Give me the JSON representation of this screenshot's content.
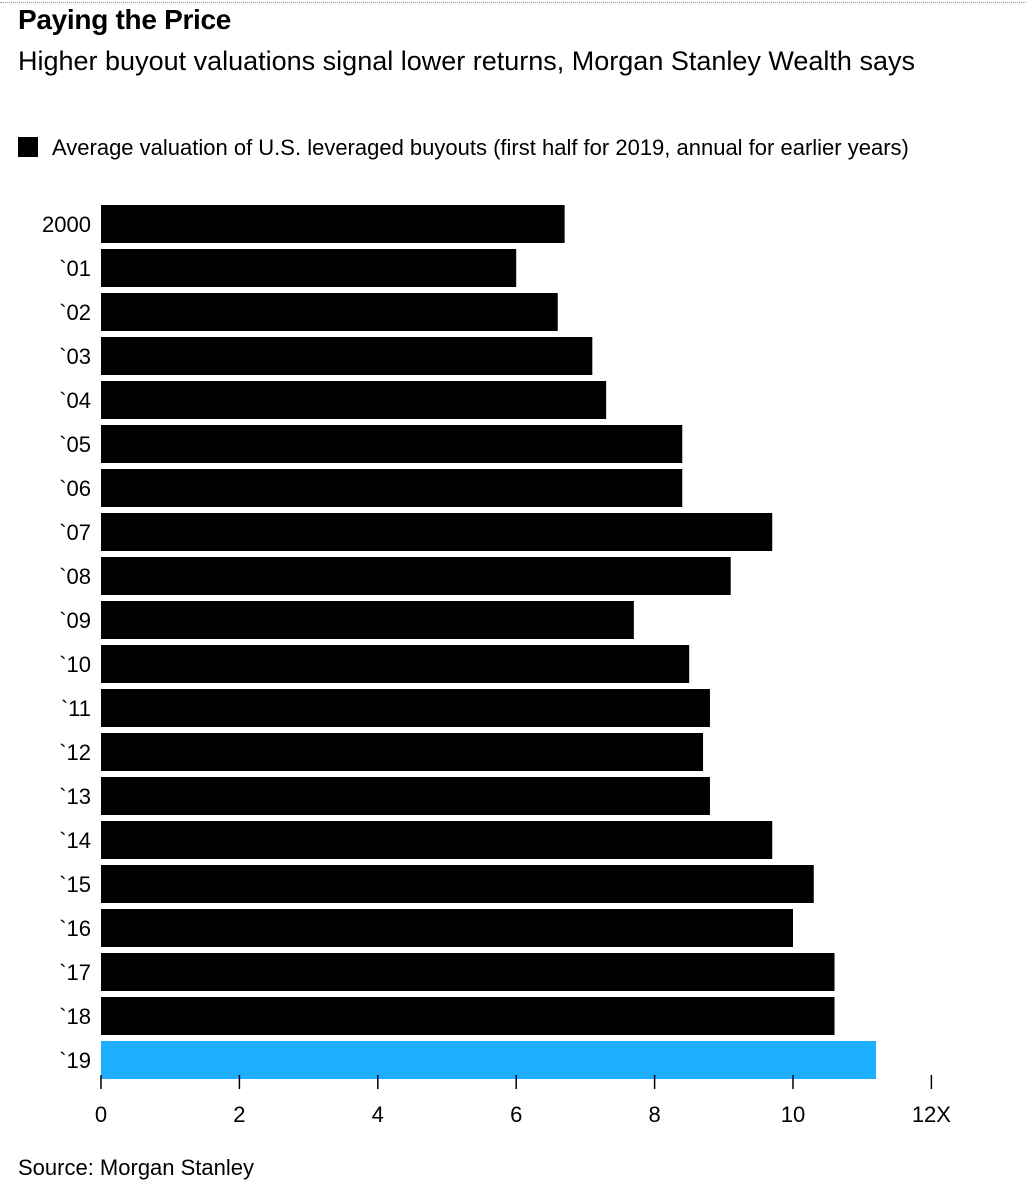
{
  "header": {
    "title": "Paying the Price",
    "subtitle": "Higher buyout valuations signal lower returns, Morgan Stanley Wealth says"
  },
  "legend": {
    "label": "Average valuation of U.S. leveraged buyouts (first half for 2019, annual for earlier years)",
    "color": "#000000"
  },
  "footer": {
    "source": "Source: Morgan Stanley"
  },
  "chart_data": {
    "type": "bar",
    "orientation": "horizontal",
    "categories": [
      "2000",
      "`01",
      "`02",
      "`03",
      "`04",
      "`05",
      "`06",
      "`07",
      "`08",
      "`09",
      "`10",
      "`11",
      "`12",
      "`13",
      "`14",
      "`15",
      "`16",
      "`17",
      "`18",
      "`19"
    ],
    "series": [
      {
        "name": "Average valuation of U.S. leveraged buyouts (first half for 2019, annual for earlier years)",
        "values": [
          6.7,
          6.0,
          6.6,
          7.1,
          7.3,
          8.4,
          8.4,
          9.7,
          9.1,
          7.7,
          8.5,
          8.8,
          8.7,
          8.8,
          9.7,
          10.3,
          10.0,
          10.6,
          10.6,
          11.2
        ]
      }
    ],
    "bar_colors": [
      "#000000",
      "#000000",
      "#000000",
      "#000000",
      "#000000",
      "#000000",
      "#000000",
      "#000000",
      "#000000",
      "#000000",
      "#000000",
      "#000000",
      "#000000",
      "#000000",
      "#000000",
      "#000000",
      "#000000",
      "#000000",
      "#000000",
      "#1eaeff"
    ],
    "xlim": [
      0,
      12
    ],
    "x_ticks": [
      0,
      2,
      4,
      6,
      8,
      10,
      12
    ],
    "x_tick_labels": [
      "0",
      "2",
      "4",
      "6",
      "8",
      "10",
      "12X"
    ],
    "grid": false,
    "legend_position": "top-left"
  }
}
